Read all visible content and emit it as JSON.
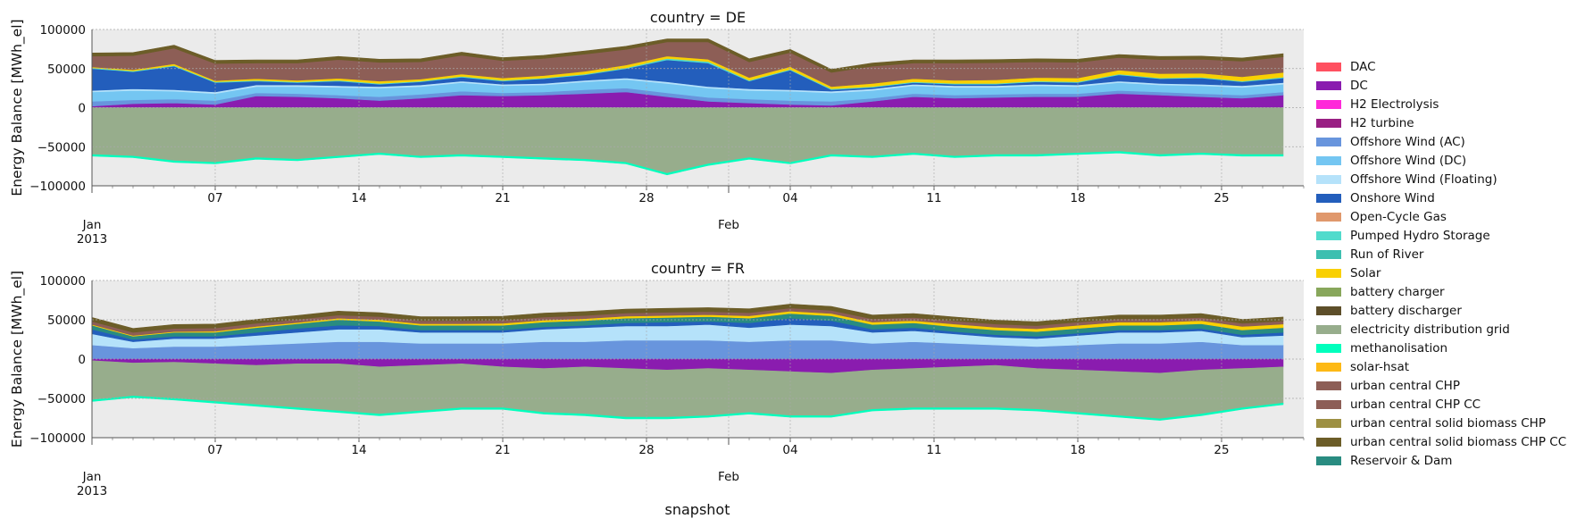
{
  "figure": {
    "xlabel": "snapshot",
    "legend_entries": [
      {
        "name": "DAC",
        "color": "#ff5060"
      },
      {
        "name": "DC",
        "color": "#8a1caf"
      },
      {
        "name": "H2 Electrolysis",
        "color": "#ff29d9"
      },
      {
        "name": "H2 turbine",
        "color": "#991f83"
      },
      {
        "name": "Offshore Wind (AC)",
        "color": "#6895dd"
      },
      {
        "name": "Offshore Wind (DC)",
        "color": "#74c6f2"
      },
      {
        "name": "Offshore Wind (Floating)",
        "color": "#b5e2fa"
      },
      {
        "name": "Onshore Wind",
        "color": "#235ebc"
      },
      {
        "name": "Open-Cycle Gas",
        "color": "#e0986c"
      },
      {
        "name": "Pumped Hydro Storage",
        "color": "#51dbcc"
      },
      {
        "name": "Run of River",
        "color": "#3dbfb0"
      },
      {
        "name": "Solar",
        "color": "#f9d002"
      },
      {
        "name": "battery charger",
        "color": "#88a75b"
      },
      {
        "name": "battery discharger",
        "color": "#5d4e29"
      },
      {
        "name": "electricity distribution grid",
        "color": "#97ad8c"
      },
      {
        "name": "methanolisation",
        "color": "#00ffbd"
      },
      {
        "name": "solar-hsat",
        "color": "#fdb915"
      },
      {
        "name": "urban central CHP",
        "color": "#8d5e56"
      },
      {
        "name": "urban central CHP CC",
        "color": "#8d5e56"
      },
      {
        "name": "urban central solid biomass CHP",
        "color": "#9d9042"
      },
      {
        "name": "urban central solid biomass CHP CC",
        "color": "#6c5d28"
      },
      {
        "name": "Reservoir & Dam",
        "color": "#298c81"
      }
    ]
  },
  "chart_data": [
    {
      "type": "area",
      "title": "country = DE",
      "ylabel": "Energy Balance [MWh_el]",
      "ylim": [
        -100000,
        100000
      ],
      "yticks": [
        "100000",
        "50000",
        "0",
        "−50000",
        "−100000"
      ],
      "xlim": [
        "2013-01-01",
        "2013-03-01"
      ],
      "xticks_major": [
        "07",
        "14",
        "21",
        "28",
        "04",
        "11",
        "18",
        "25"
      ],
      "xticks_month": [
        "Jan\n2013",
        "Feb"
      ],
      "grid": true,
      "x": [
        "2013-01-01",
        "2013-01-03",
        "2013-01-05",
        "2013-01-07",
        "2013-01-09",
        "2013-01-11",
        "2013-01-13",
        "2013-01-15",
        "2013-01-17",
        "2013-01-19",
        "2013-01-21",
        "2013-01-23",
        "2013-01-25",
        "2013-01-27",
        "2013-01-29",
        "2013-01-31",
        "2013-02-02",
        "2013-02-04",
        "2013-02-06",
        "2013-02-08",
        "2013-02-10",
        "2013-02-12",
        "2013-02-14",
        "2013-02-16",
        "2013-02-18",
        "2013-02-20",
        "2013-02-22",
        "2013-02-24",
        "2013-02-26",
        "2013-02-28"
      ],
      "series": [
        {
          "name": "DC",
          "color": "#8a1caf",
          "values": [
            2000,
            5000,
            6000,
            4000,
            15000,
            14000,
            12000,
            9000,
            12000,
            16000,
            15000,
            16000,
            18000,
            20000,
            14000,
            8000,
            6000,
            4000,
            3000,
            8000,
            14000,
            12000,
            13000,
            14000,
            14000,
            18000,
            16000,
            14000,
            12000,
            16000
          ]
        },
        {
          "name": "Offshore Wind (AC)",
          "color": "#6895dd",
          "values": [
            6000,
            5000,
            5000,
            5000,
            4000,
            4000,
            4000,
            5000,
            5000,
            5000,
            4000,
            4000,
            5000,
            5000,
            5000,
            5000,
            5000,
            5000,
            5000,
            4000,
            4000,
            4000,
            4000,
            4000,
            4000,
            4000,
            4000,
            4000,
            4000,
            4000
          ]
        },
        {
          "name": "Offshore Wind (DC)",
          "color": "#74c6f2",
          "values": [
            12000,
            12000,
            10000,
            9000,
            8000,
            9000,
            10000,
            11000,
            10000,
            11000,
            9000,
            9000,
            10000,
            11000,
            12000,
            12000,
            11000,
            12000,
            11000,
            10000,
            10000,
            10000,
            9000,
            10000,
            9000,
            10000,
            9000,
            10000,
            10000,
            10000
          ]
        },
        {
          "name": "Offshore Wind (Floating)",
          "color": "#b5e2fa",
          "values": [
            2000,
            2000,
            2000,
            2000,
            2000,
            2000,
            2000,
            2000,
            2000,
            2000,
            2000,
            2000,
            2000,
            2000,
            2000,
            2000,
            2000,
            2000,
            2000,
            2000,
            2000,
            2000,
            2000,
            2000,
            2000,
            2000,
            2000,
            2000,
            2000,
            2000
          ]
        },
        {
          "name": "Onshore Wind",
          "color": "#235ebc",
          "values": [
            28000,
            22000,
            30000,
            12000,
            5000,
            3000,
            6000,
            3000,
            4000,
            5000,
            4000,
            6000,
            7000,
            12000,
            28000,
            30000,
            10000,
            25000,
            2000,
            2000,
            2000,
            2000,
            2000,
            3000,
            3000,
            8000,
            6000,
            8000,
            5000,
            6000
          ]
        },
        {
          "name": "Pumped Hydro Storage",
          "color": "#51dbcc",
          "values": [
            1000,
            1000,
            1000,
            1000,
            1000,
            1000,
            1000,
            1000,
            1000,
            1000,
            1000,
            1000,
            1000,
            1000,
            2000,
            2000,
            1000,
            1000,
            1000,
            1000,
            1000,
            1000,
            1000,
            1000,
            1000,
            1000,
            1000,
            1000,
            1000,
            1000
          ]
        },
        {
          "name": "Solar",
          "color": "#f9d002",
          "values": [
            1000,
            1500,
            2000,
            1500,
            2000,
            2000,
            2500,
            3000,
            2500,
            3000,
            3000,
            3000,
            3500,
            3500,
            3000,
            3000,
            3500,
            3500,
            3000,
            4000,
            4000,
            4000,
            4500,
            4500,
            5000,
            5000,
            5500,
            5000,
            5500,
            6000
          ]
        },
        {
          "name": "urban central CHP",
          "color": "#8d5e56",
          "values": [
            14000,
            18000,
            20000,
            22000,
            20000,
            22000,
            24000,
            24000,
            22000,
            24000,
            22000,
            22000,
            22000,
            20000,
            18000,
            22000,
            20000,
            18000,
            18000,
            22000,
            20000,
            22000,
            22000,
            20000,
            20000,
            16000,
            18000,
            18000,
            20000,
            20000
          ]
        },
        {
          "name": "urban central solid biomass CHP CC",
          "color": "#6c5d28",
          "values": [
            4000,
            4000,
            4000,
            4000,
            4000,
            4000,
            4000,
            4000,
            4000,
            4000,
            4000,
            4000,
            4000,
            4000,
            4000,
            4000,
            4000,
            4000,
            4000,
            4000,
            4000,
            4000,
            4000,
            4000,
            4000,
            4000,
            4000,
            4000,
            4000,
            4000
          ]
        },
        {
          "name": "electricity distribution grid",
          "color": "#97ad8c",
          "values": [
            -60000,
            -62000,
            -68000,
            -70000,
            -64000,
            -66000,
            -62000,
            -58000,
            -62000,
            -60000,
            -62000,
            -64000,
            -66000,
            -70000,
            -84000,
            -72000,
            -64000,
            -70000,
            -60000,
            -62000,
            -58000,
            -62000,
            -60000,
            -60000,
            -58000,
            -56000,
            -60000,
            -58000,
            -60000,
            -60000
          ]
        },
        {
          "name": "methanolisation",
          "color": "#00ffbd",
          "values": [
            -2000,
            -2000,
            -2000,
            -2000,
            -2000,
            -2000,
            -2000,
            -2000,
            -2000,
            -2000,
            -2000,
            -2000,
            -2000,
            -2000,
            -2000,
            -2000,
            -2000,
            -2000,
            -2000,
            -2000,
            -2000,
            -2000,
            -2000,
            -2000,
            -2000,
            -2000,
            -2000,
            -2000,
            -2000,
            -2000
          ]
        }
      ]
    },
    {
      "type": "area",
      "title": "country = FR",
      "ylabel": "Energy Balance [MWh_el]",
      "ylim": [
        -100000,
        100000
      ],
      "yticks": [
        "100000",
        "50000",
        "0",
        "−50000",
        "−100000"
      ],
      "xlim": [
        "2013-01-01",
        "2013-03-01"
      ],
      "xticks_major": [
        "07",
        "14",
        "21",
        "28",
        "04",
        "11",
        "18",
        "25"
      ],
      "xticks_month": [
        "Jan\n2013",
        "Feb"
      ],
      "grid": true,
      "x": [
        "2013-01-01",
        "2013-01-03",
        "2013-01-05",
        "2013-01-07",
        "2013-01-09",
        "2013-01-11",
        "2013-01-13",
        "2013-01-15",
        "2013-01-17",
        "2013-01-19",
        "2013-01-21",
        "2013-01-23",
        "2013-01-25",
        "2013-01-27",
        "2013-01-29",
        "2013-01-31",
        "2013-02-02",
        "2013-02-04",
        "2013-02-06",
        "2013-02-08",
        "2013-02-10",
        "2013-02-12",
        "2013-02-14",
        "2013-02-16",
        "2013-02-18",
        "2013-02-20",
        "2013-02-22",
        "2013-02-24",
        "2013-02-26",
        "2013-02-28"
      ],
      "series": [
        {
          "name": "Offshore Wind (AC)",
          "color": "#6895dd",
          "values": [
            18000,
            14000,
            16000,
            16000,
            18000,
            20000,
            22000,
            22000,
            20000,
            20000,
            20000,
            22000,
            22000,
            24000,
            24000,
            24000,
            22000,
            24000,
            24000,
            20000,
            22000,
            20000,
            18000,
            16000,
            18000,
            20000,
            20000,
            22000,
            18000,
            18000
          ]
        },
        {
          "name": "Offshore Wind (Floating)",
          "color": "#b5e2fa",
          "values": [
            14000,
            8000,
            10000,
            10000,
            12000,
            14000,
            16000,
            16000,
            14000,
            14000,
            14000,
            16000,
            18000,
            18000,
            18000,
            20000,
            18000,
            20000,
            18000,
            14000,
            14000,
            12000,
            10000,
            10000,
            12000,
            14000,
            14000,
            14000,
            10000,
            12000
          ]
        },
        {
          "name": "Onshore Wind",
          "color": "#235ebc",
          "values": [
            6000,
            3000,
            3000,
            3000,
            4000,
            5000,
            5000,
            4000,
            3000,
            3000,
            3000,
            3000,
            3000,
            4000,
            5000,
            4000,
            6000,
            8000,
            7000,
            4000,
            4000,
            3000,
            3000,
            3000,
            3000,
            3000,
            3000,
            3000,
            3000,
            4000
          ]
        },
        {
          "name": "Reservoir & Dam",
          "color": "#298c81",
          "values": [
            5000,
            4000,
            5000,
            5000,
            6000,
            6000,
            7000,
            6000,
            6000,
            6000,
            6000,
            6000,
            6000,
            6000,
            6000,
            6000,
            6000,
            6000,
            6000,
            6000,
            6000,
            6000,
            6000,
            6000,
            6000,
            6000,
            6000,
            6000,
            6000,
            6000
          ]
        },
        {
          "name": "Solar",
          "color": "#f9d002",
          "values": [
            1000,
            1000,
            1000,
            1500,
            1500,
            1500,
            2000,
            2000,
            2000,
            2000,
            2500,
            2500,
            2500,
            2500,
            2500,
            2500,
            3000,
            3000,
            3000,
            3000,
            3000,
            3500,
            3500,
            3500,
            4000,
            4000,
            4000,
            4000,
            4500,
            4500
          ]
        },
        {
          "name": "urban central CHP",
          "color": "#8d5e56",
          "values": [
            4000,
            4000,
            4000,
            4000,
            4000,
            4000,
            4000,
            4000,
            4000,
            4000,
            4000,
            4000,
            4000,
            4000,
            4000,
            4000,
            4000,
            4000,
            4000,
            4000,
            4000,
            4000,
            4000,
            4000,
            4000,
            4000,
            4000,
            4000,
            4000,
            4000
          ]
        },
        {
          "name": "urban central solid biomass CHP CC",
          "color": "#6c5d28",
          "values": [
            5000,
            5000,
            5000,
            5000,
            5000,
            5000,
            5000,
            5000,
            5000,
            5000,
            5000,
            5000,
            5000,
            5000,
            5000,
            5000,
            5000,
            5000,
            5000,
            5000,
            5000,
            5000,
            5000,
            5000,
            5000,
            5000,
            5000,
            5000,
            5000,
            5000
          ]
        },
        {
          "name": "DC",
          "color": "#8a1caf",
          "values": [
            -2000,
            -5000,
            -4000,
            -6000,
            -8000,
            -6000,
            -6000,
            -10000,
            -8000,
            -6000,
            -10000,
            -12000,
            -10000,
            -12000,
            -14000,
            -12000,
            -14000,
            -16000,
            -18000,
            -14000,
            -12000,
            -10000,
            -8000,
            -12000,
            -14000,
            -16000,
            -18000,
            -14000,
            -12000,
            -10000
          ]
        },
        {
          "name": "electricity distribution grid",
          "color": "#97ad8c",
          "values": [
            -50000,
            -42000,
            -46000,
            -48000,
            -50000,
            -56000,
            -60000,
            -60000,
            -58000,
            -56000,
            -52000,
            -56000,
            -60000,
            -62000,
            -60000,
            -60000,
            -54000,
            -56000,
            -54000,
            -50000,
            -50000,
            -52000,
            -54000,
            -52000,
            -54000,
            -56000,
            -58000,
            -56000,
            -50000,
            -46000
          ]
        },
        {
          "name": "methanolisation",
          "color": "#00ffbd",
          "values": [
            -2000,
            -2000,
            -2000,
            -2000,
            -2000,
            -2000,
            -2000,
            -2000,
            -2000,
            -2000,
            -2000,
            -2000,
            -2000,
            -2000,
            -2000,
            -2000,
            -2000,
            -2000,
            -2000,
            -2000,
            -2000,
            -2000,
            -2000,
            -2000,
            -2000,
            -2000,
            -2000,
            -2000,
            -2000,
            -2000
          ]
        }
      ]
    }
  ]
}
